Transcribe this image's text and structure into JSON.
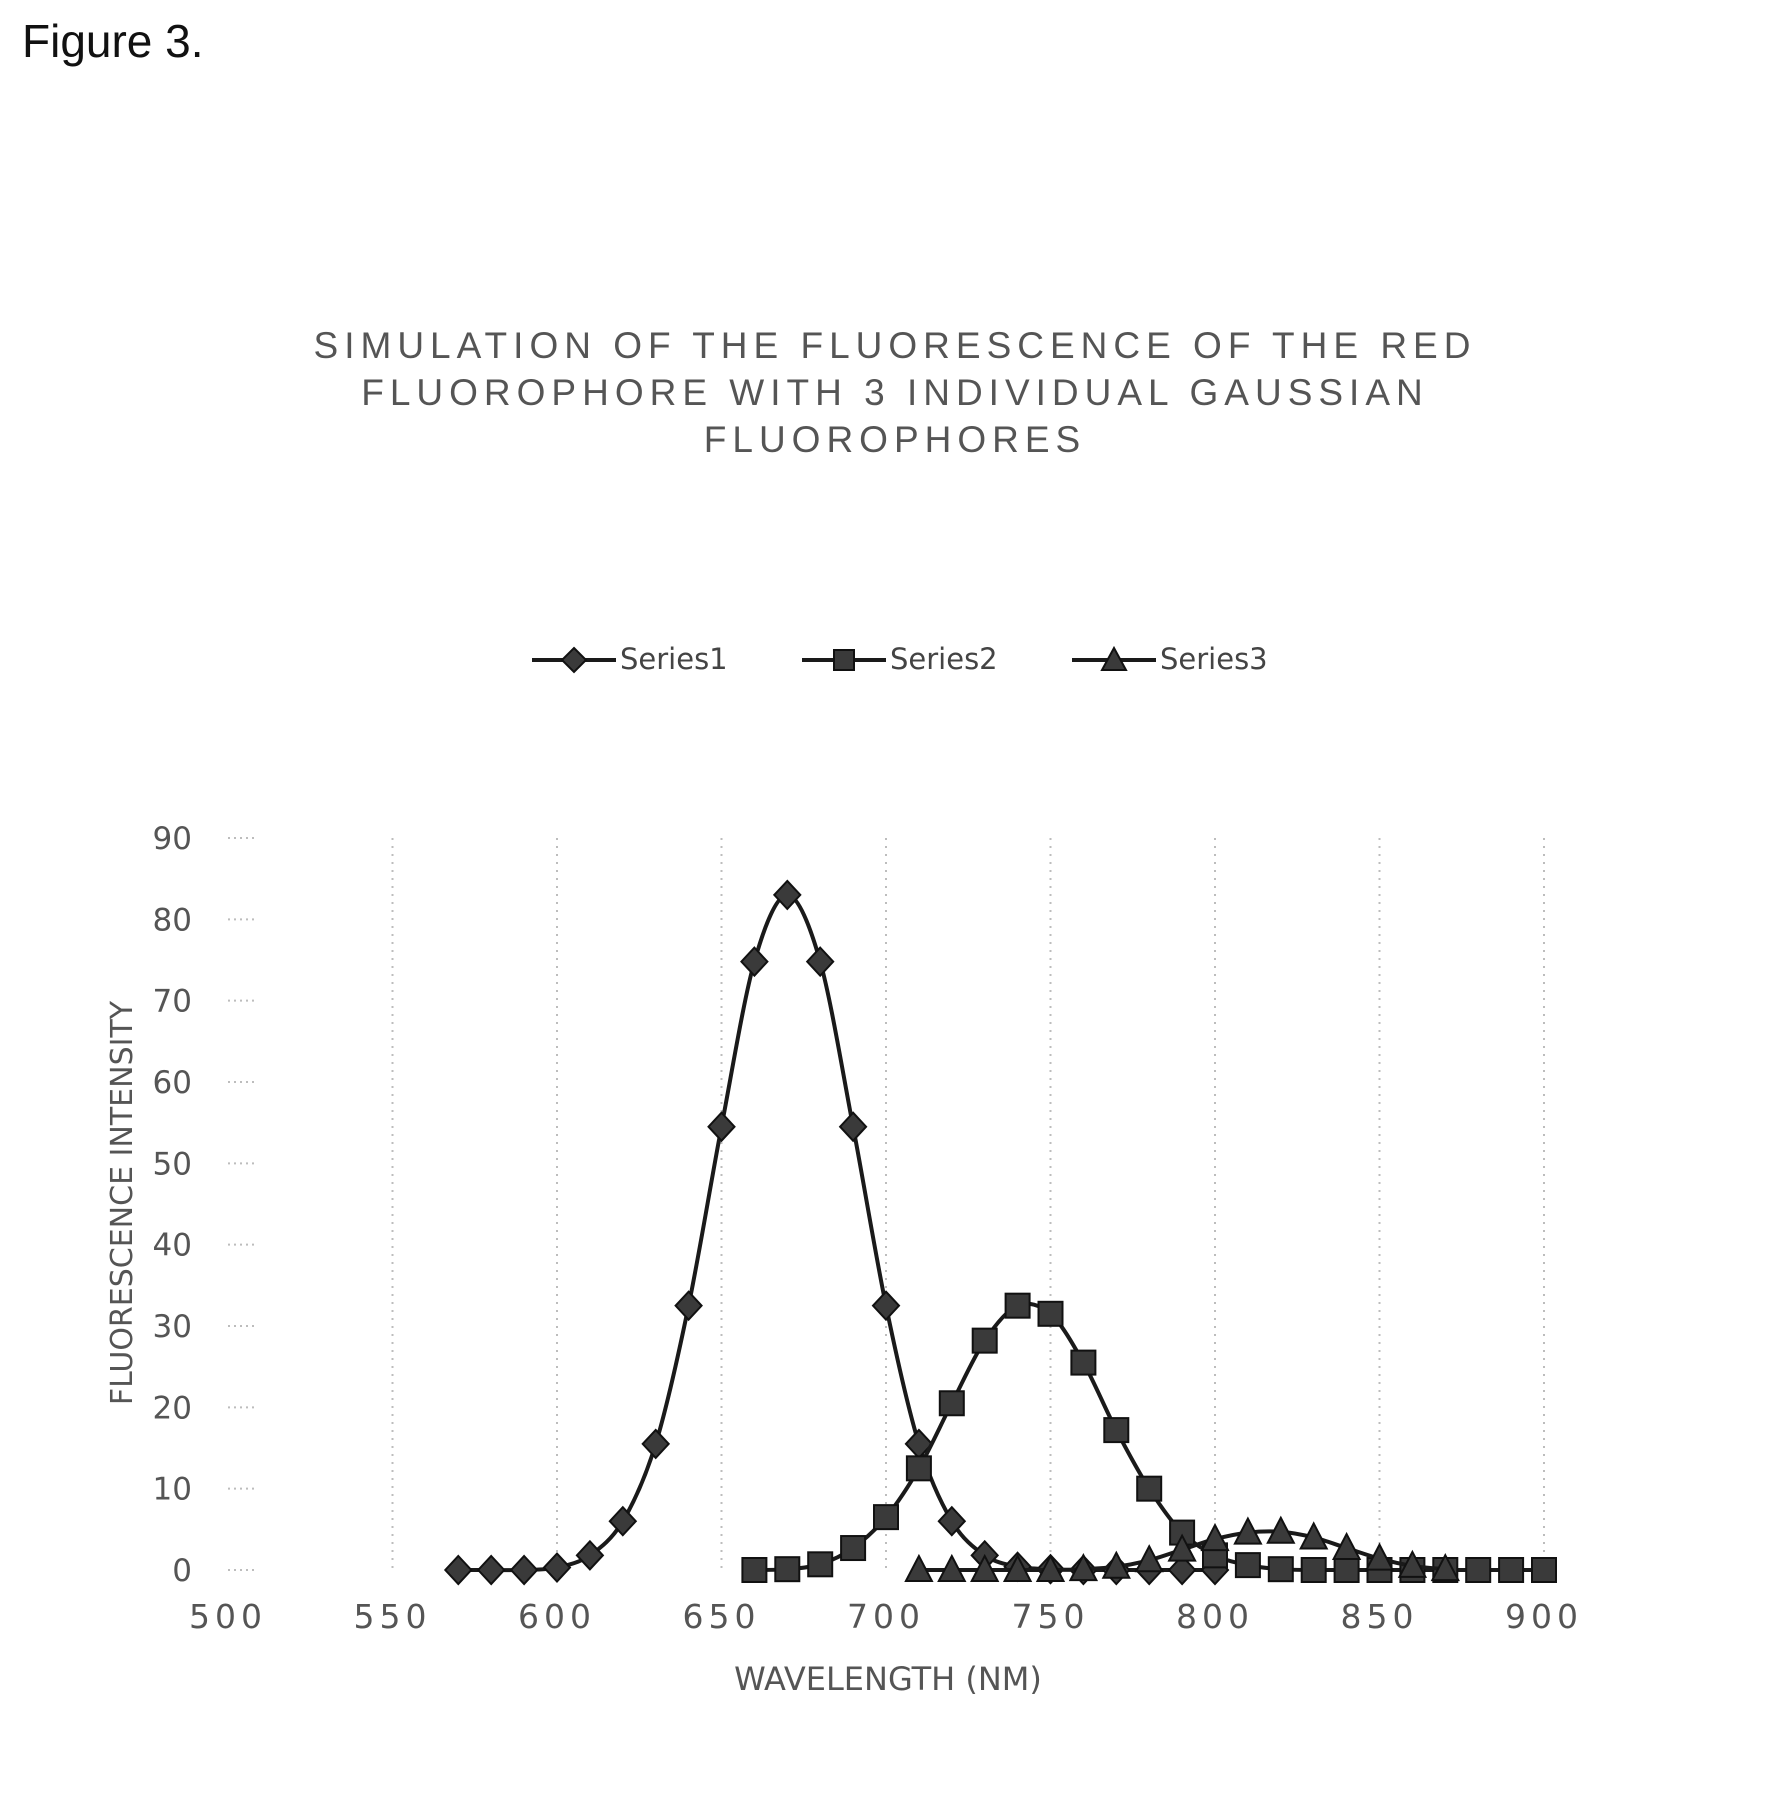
{
  "figure_label": "Figure 3.",
  "chart_data": {
    "type": "line",
    "title_lines": [
      "SIMULATION OF THE FLUORESCENCE OF THE RED",
      "FLUOROPHORE WITH 3 INDIVIDUAL GAUSSIAN",
      "FLUOROPHORES"
    ],
    "title": "SIMULATION OF THE FLUORESCENCE OF THE RED FLUOROPHORE WITH 3 INDIVIDUAL GAUSSIAN FLUOROPHORES",
    "xlabel": "WAVELENGTH (NM)",
    "ylabel": "FLUORESCENCE INTENSITY",
    "xlim": [
      500,
      900
    ],
    "ylim": [
      0,
      90
    ],
    "xticks": [
      500,
      550,
      600,
      650,
      700,
      750,
      800,
      850,
      900
    ],
    "yticks": [
      0,
      10,
      20,
      30,
      40,
      50,
      60,
      70,
      80,
      90
    ],
    "grid": "vertical dotted",
    "legend_position": "top-center",
    "line_color": "#1a1a1a",
    "series": [
      {
        "name": "Series1",
        "marker": "diamond",
        "x": [
          570,
          580,
          590,
          600,
          610,
          620,
          630,
          640,
          650,
          660,
          670,
          680,
          690,
          700,
          710,
          720,
          730,
          740,
          750,
          760,
          770,
          780,
          790,
          800
        ],
        "y": [
          0,
          0,
          0,
          0.3,
          1.8,
          6,
          15.5,
          32.5,
          54.5,
          74.8,
          83,
          74.8,
          54.5,
          32.5,
          15.5,
          6,
          1.8,
          0.4,
          0.1,
          0,
          0,
          0,
          0,
          0
        ]
      },
      {
        "name": "Series2",
        "marker": "square",
        "x": [
          660,
          670,
          680,
          690,
          700,
          710,
          720,
          730,
          740,
          750,
          760,
          770,
          780,
          790,
          800,
          810,
          820,
          830,
          840,
          850,
          860,
          870,
          880,
          890,
          900
        ],
        "y": [
          0,
          0.1,
          0.7,
          2.7,
          6.5,
          12.5,
          20.5,
          28.2,
          32.5,
          31.5,
          25.5,
          17.2,
          10,
          4.6,
          1.8,
          0.6,
          0.1,
          0,
          0,
          0,
          0,
          0,
          0,
          0,
          0
        ]
      },
      {
        "name": "Series3",
        "marker": "triangle",
        "x": [
          710,
          720,
          730,
          740,
          750,
          760,
          770,
          780,
          790,
          800,
          810,
          820,
          830,
          840,
          850,
          860,
          870
        ],
        "y": [
          0,
          0,
          0,
          0,
          0,
          0.1,
          0.4,
          1.2,
          2.5,
          3.8,
          4.6,
          4.7,
          4,
          2.7,
          1.4,
          0.5,
          0.1
        ]
      }
    ]
  }
}
